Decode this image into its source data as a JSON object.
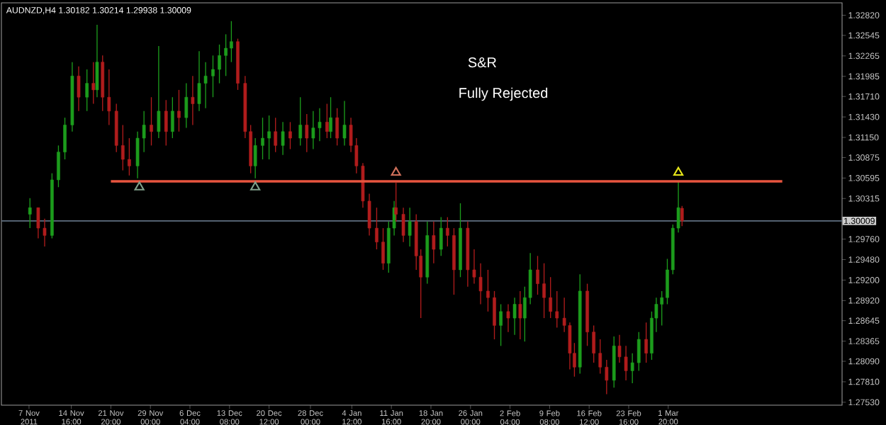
{
  "chart_data": {
    "type": "candlestick",
    "title": "S&R",
    "subtitle": "Fully Rejected",
    "annotations": [
      "AUDNZD,H4 1.30182 1.30214 1.29938 1.30009"
    ],
    "xlim": [
      "2011-11-02T00:00",
      "2012-04-02T08:00"
    ],
    "ylim": [
      1.2749,
      1.3299
    ],
    "xticks": [
      {
        "value": "2011-11-07T00:00",
        "label": "7 Nov 2011"
      },
      {
        "value": "2011-11-14T16:00",
        "label": "14 Nov 16:00"
      },
      {
        "value": "2011-11-21T20:00",
        "label": "21 Nov 20:00"
      },
      {
        "value": "2011-11-29T00:00",
        "label": "29 Nov 00:00"
      },
      {
        "value": "2011-12-06T04:00",
        "label": "6 Dec 04:00"
      },
      {
        "value": "2011-12-13T08:00",
        "label": "13 Dec 08:00"
      },
      {
        "value": "2011-12-20T12:00",
        "label": "20 Dec 12:00"
      },
      {
        "value": "2011-12-28T00:00",
        "label": "28 Dec 00:00"
      },
      {
        "value": "2012-01-04T12:00",
        "label": "4 Jan 12:00"
      },
      {
        "value": "2012-01-11T16:00",
        "label": "11 Jan 16:00"
      },
      {
        "value": "2012-01-18T20:00",
        "label": "18 Jan 20:00"
      },
      {
        "value": "2012-01-26T00:00",
        "label": "26 Jan 00:00"
      },
      {
        "value": "2012-02-02T04:00",
        "label": "2 Feb 04:00"
      },
      {
        "value": "2012-02-09T08:00",
        "label": "9 Feb 08:00"
      },
      {
        "value": "2012-02-16T12:00",
        "label": "16 Feb 12:00"
      },
      {
        "value": "2012-02-23T16:00",
        "label": "23 Feb 16:00"
      },
      {
        "value": "2012-03-01T20:00",
        "label": "1 Mar 20:00"
      }
    ],
    "yticks": [
      {
        "value": 1.2753,
        "label": "1.27530"
      },
      {
        "value": 1.2781,
        "label": "1.27810"
      },
      {
        "value": 1.2809,
        "label": "1.28090"
      },
      {
        "value": 1.28365,
        "label": "1.28365"
      },
      {
        "value": 1.28645,
        "label": "1.28645"
      },
      {
        "value": 1.2892,
        "label": "1.28920"
      },
      {
        "value": 1.292,
        "label": "1.29200"
      },
      {
        "value": 1.2948,
        "label": "1.29480"
      },
      {
        "value": 1.2976,
        "label": "1.29760"
      },
      {
        "value": 1.30315,
        "label": "1.30315"
      },
      {
        "value": 1.30595,
        "label": "1.30595"
      },
      {
        "value": 1.30875,
        "label": "1.30875"
      },
      {
        "value": 1.3115,
        "label": "1.31150"
      },
      {
        "value": 1.3143,
        "label": "1.31430"
      },
      {
        "value": 1.3171,
        "label": "1.31710"
      },
      {
        "value": 1.31985,
        "label": "1.31985"
      },
      {
        "value": 1.32265,
        "label": "1.32265"
      },
      {
        "value": 1.32545,
        "label": "1.32545"
      },
      {
        "value": 1.3282,
        "label": "1.32820"
      }
    ],
    "ref_lines": [
      {
        "axis": "y",
        "value": 1.30009,
        "label": "1.30009",
        "color": "#5f6f80"
      }
    ],
    "series": [
      {
        "x": [
          "2011-11-07T04:00",
          "2011-11-08T16:00",
          "2011-11-09T20:00",
          "2011-11-11T04:00",
          "2011-11-12T08:00",
          "2011-11-13T12:00",
          "2011-11-14T20:00",
          "2011-11-16T00:00",
          "2011-11-17T12:00",
          "2011-11-18T16:00",
          "2011-11-19T08:00",
          "2011-11-20T08:00",
          "2011-11-21T12:00",
          "2011-11-22T20:00",
          "2011-11-24T00:00",
          "2011-11-25T04:00",
          "2011-11-26T16:00",
          "2011-11-27T20:00",
          "2011-11-29T04:00",
          "2011-11-30T12:00",
          "2011-12-01T20:00",
          "2011-12-03T00:00",
          "2011-12-04T04:00",
          "2011-12-05T12:00",
          "2011-12-06T16:00",
          "2011-12-07T20:00",
          "2011-12-09T00:00",
          "2011-12-10T08:00",
          "2011-12-11T12:00",
          "2011-12-12T16:00",
          "2011-12-13T16:00",
          "2011-12-14T20:00",
          "2011-12-16T04:00",
          "2011-12-17T04:00",
          "2011-12-18T00:00",
          "2011-12-19T08:00",
          "2011-12-20T12:00",
          "2011-12-21T16:00",
          "2011-12-23T00:00",
          "2011-12-24T08:00",
          "2011-12-26T04:00",
          "2011-12-27T08:00",
          "2011-12-28T12:00",
          "2011-12-29T16:00",
          "2011-12-31T00:00",
          "2011-12-31T16:00",
          "2012-01-01T20:00",
          "2012-01-03T04:00",
          "2012-01-04T08:00",
          "2012-01-05T08:00",
          "2012-01-06T12:00",
          "2012-01-07T16:00",
          "2012-01-09T00:00",
          "2012-01-10T04:00",
          "2012-01-11T04:00",
          "2012-01-12T04:00",
          "2012-01-12T12:00",
          "2012-01-13T20:00",
          "2012-01-15T00:00",
          "2012-01-16T04:00",
          "2012-01-17T00:00",
          "2012-01-18T04:00",
          "2012-01-19T08:00",
          "2012-01-20T16:00",
          "2012-01-21T20:00",
          "2012-01-23T00:00",
          "2012-01-24T04:00",
          "2012-01-25T12:00",
          "2012-01-26T16:00",
          "2012-01-27T20:00",
          "2012-01-29T04:00",
          "2012-01-30T08:00",
          "2012-01-31T12:00",
          "2012-02-01T20:00",
          "2012-02-03T00:00",
          "2012-02-04T00:00",
          "2012-02-04T20:00",
          "2012-02-05T20:00",
          "2012-02-07T04:00",
          "2012-02-08T08:00",
          "2012-02-09T12:00",
          "2012-02-10T16:00",
          "2012-02-12T00:00",
          "2012-02-13T00:00",
          "2012-02-13T20:00",
          "2012-02-14T20:00",
          "2012-02-16T04:00",
          "2012-02-17T08:00",
          "2012-02-18T12:00",
          "2012-02-19T16:00",
          "2012-02-21T00:00",
          "2012-02-22T00:00",
          "2012-02-23T04:00",
          "2012-02-24T08:00",
          "2012-02-25T12:00",
          "2012-02-26T20:00",
          "2012-02-27T20:00",
          "2012-02-28T16:00",
          "2012-02-29T16:00",
          "2012-03-01T16:00",
          "2012-03-02T16:00",
          "2012-03-03T16:00",
          "2012-03-04T08:00"
        ],
        "ohlc": [
          [
            1.301,
            1.3032,
            1.2991,
            1.3019
          ],
          [
            1.3019,
            1.3019,
            1.2977,
            1.2991
          ],
          [
            1.2991,
            1.3004,
            1.2966,
            1.2981
          ],
          [
            1.2981,
            1.3066,
            1.2977,
            1.3057
          ],
          [
            1.3057,
            1.3104,
            1.3047,
            1.3095
          ],
          [
            1.3095,
            1.3142,
            1.3085,
            1.3132
          ],
          [
            1.3132,
            1.3218,
            1.3123,
            1.3199
          ],
          [
            1.3199,
            1.3212,
            1.3151,
            1.317
          ],
          [
            1.317,
            1.3208,
            1.3151,
            1.3189
          ],
          [
            1.3189,
            1.3218,
            1.3161,
            1.318
          ],
          [
            1.318,
            1.3269,
            1.317,
            1.3218
          ],
          [
            1.3218,
            1.3227,
            1.3151,
            1.317
          ],
          [
            1.317,
            1.3208,
            1.3132,
            1.3151
          ],
          [
            1.3151,
            1.3161,
            1.3095,
            1.3104
          ],
          [
            1.3104,
            1.3132,
            1.307,
            1.3085
          ],
          [
            1.3085,
            1.3114,
            1.3063,
            1.3076
          ],
          [
            1.3076,
            1.3123,
            1.3059,
            1.3114
          ],
          [
            1.3114,
            1.3151,
            1.3095,
            1.3132
          ],
          [
            1.3132,
            1.317,
            1.3104,
            1.3123
          ],
          [
            1.3123,
            1.324,
            1.3114,
            1.3151
          ],
          [
            1.3151,
            1.3166,
            1.3104,
            1.3123
          ],
          [
            1.3123,
            1.317,
            1.3114,
            1.3151
          ],
          [
            1.3151,
            1.318,
            1.3123,
            1.3142
          ],
          [
            1.3142,
            1.3189,
            1.3128,
            1.317
          ],
          [
            1.317,
            1.3199,
            1.3132,
            1.3161
          ],
          [
            1.3161,
            1.3233,
            1.3151,
            1.3189
          ],
          [
            1.3189,
            1.3218,
            1.3155,
            1.3199
          ],
          [
            1.3199,
            1.3227,
            1.317,
            1.3208
          ],
          [
            1.3208,
            1.3242,
            1.3189,
            1.3227
          ],
          [
            1.3227,
            1.3256,
            1.3199,
            1.3237
          ],
          [
            1.3237,
            1.3274,
            1.3218,
            1.3246
          ],
          [
            1.3246,
            1.325,
            1.318,
            1.3189
          ],
          [
            1.3189,
            1.3199,
            1.3114,
            1.3123
          ],
          [
            1.3123,
            1.3132,
            1.3066,
            1.3076
          ],
          [
            1.3076,
            1.3114,
            1.3059,
            1.3104
          ],
          [
            1.3104,
            1.3142,
            1.3085,
            1.3114
          ],
          [
            1.3114,
            1.3145,
            1.3085,
            1.3123
          ],
          [
            1.3123,
            1.3142,
            1.3095,
            1.3104
          ],
          [
            1.3104,
            1.3136,
            1.3091,
            1.3123
          ],
          [
            1.3123,
            1.3136,
            1.3099,
            1.3114
          ],
          [
            1.3114,
            1.317,
            1.3104,
            1.3132
          ],
          [
            1.3132,
            1.3147,
            1.3095,
            1.3114
          ],
          [
            1.3114,
            1.3151,
            1.3099,
            1.3128
          ],
          [
            1.3128,
            1.3155,
            1.311,
            1.3136
          ],
          [
            1.3136,
            1.3161,
            1.3114,
            1.3123
          ],
          [
            1.3123,
            1.317,
            1.3114,
            1.3142
          ],
          [
            1.3142,
            1.3155,
            1.3104,
            1.3114
          ],
          [
            1.3114,
            1.3165,
            1.3104,
            1.3132
          ],
          [
            1.3132,
            1.3142,
            1.3095,
            1.3104
          ],
          [
            1.3104,
            1.3114,
            1.3066,
            1.3076
          ],
          [
            1.3076,
            1.308,
            1.3019,
            1.3028
          ],
          [
            1.3028,
            1.3038,
            1.2981,
            1.2991
          ],
          [
            1.2991,
            1.3019,
            1.2962,
            1.2972
          ],
          [
            1.2972,
            1.2991,
            1.2934,
            1.2943
          ],
          [
            1.2943,
            1.3,
            1.293,
            1.2991
          ],
          [
            1.2991,
            1.3028,
            1.2981,
            1.3019
          ],
          [
            1.3019,
            1.3053,
            1.3,
            1.301
          ],
          [
            1.301,
            1.3019,
            1.2972,
            1.2981
          ],
          [
            1.2981,
            1.3019,
            1.2966,
            1.3
          ],
          [
            1.3,
            1.301,
            1.2934,
            1.2953
          ],
          [
            1.2953,
            1.2962,
            1.2868,
            1.2924
          ],
          [
            1.2924,
            1.3,
            1.2915,
            1.2981
          ],
          [
            1.2981,
            1.3,
            1.2943,
            1.2962
          ],
          [
            1.2962,
            1.3006,
            1.2953,
            1.2991
          ],
          [
            1.2991,
            1.3006,
            1.2966,
            1.2981
          ],
          [
            1.2981,
            1.2991,
            1.29,
            1.2934
          ],
          [
            1.2934,
            1.3025,
            1.2924,
            1.2991
          ],
          [
            1.2991,
            1.3,
            1.2911,
            1.2934
          ],
          [
            1.2934,
            1.2962,
            1.2915,
            1.2924
          ],
          [
            1.2924,
            1.2943,
            1.2887,
            1.2905
          ],
          [
            1.2905,
            1.2934,
            1.2877,
            1.2896
          ],
          [
            1.2896,
            1.2905,
            1.2839,
            1.2858
          ],
          [
            1.2858,
            1.2887,
            1.283,
            1.2877
          ],
          [
            1.2877,
            1.2887,
            1.2849,
            1.2868
          ],
          [
            1.2868,
            1.2896,
            1.2845,
            1.2887
          ],
          [
            1.2887,
            1.2905,
            1.2839,
            1.2868
          ],
          [
            1.2868,
            1.2911,
            1.2836,
            1.2896
          ],
          [
            1.2896,
            1.2957,
            1.2887,
            1.2934
          ],
          [
            1.2934,
            1.2953,
            1.29,
            1.2915
          ],
          [
            1.2915,
            1.2943,
            1.2868,
            1.2896
          ],
          [
            1.2896,
            1.2924,
            1.2868,
            1.2877
          ],
          [
            1.2877,
            1.2905,
            1.2855,
            1.2868
          ],
          [
            1.2868,
            1.2896,
            1.2849,
            1.2858
          ],
          [
            1.2858,
            1.2862,
            1.2798,
            1.282
          ],
          [
            1.282,
            1.2834,
            1.2788,
            1.2801
          ],
          [
            1.2801,
            1.2928,
            1.2792,
            1.2905
          ],
          [
            1.2905,
            1.2915,
            1.283,
            1.2849
          ],
          [
            1.2849,
            1.2858,
            1.2807,
            1.282
          ],
          [
            1.282,
            1.2839,
            1.2792,
            1.2801
          ],
          [
            1.2801,
            1.2811,
            1.2764,
            1.2783
          ],
          [
            1.2783,
            1.2843,
            1.2773,
            1.283
          ],
          [
            1.283,
            1.2845,
            1.2807,
            1.2815
          ],
          [
            1.2815,
            1.283,
            1.2783,
            1.2796
          ],
          [
            1.2796,
            1.282,
            1.2779,
            1.2807
          ],
          [
            1.2807,
            1.2849,
            1.2796,
            1.2839
          ],
          [
            1.2839,
            1.2862,
            1.2807,
            1.282
          ],
          [
            1.282,
            1.2877,
            1.2811,
            1.2868
          ],
          [
            1.2868,
            1.2896,
            1.2849,
            1.2887
          ],
          [
            1.2887,
            1.2905,
            1.2858,
            1.2896
          ],
          [
            1.2896,
            1.2949,
            1.2887,
            1.2934
          ],
          [
            1.2934,
            1.2996,
            1.2928,
            1.2991
          ],
          [
            1.2991,
            1.3055,
            1.2985,
            1.3019
          ],
          [
            1.30182,
            1.30214,
            1.29938,
            1.30009
          ]
        ],
        "colors": [
          "#1c9c1c",
          "#b01c1c",
          "#b01c1c",
          "#1c9c1c",
          "#1c9c1c",
          "#1c9c1c",
          "#1c9c1c",
          "#b01c1c",
          "#1c9c1c",
          "#b01c1c",
          "#1c9c1c",
          "#b01c1c",
          "#b01c1c",
          "#b01c1c",
          "#b01c1c",
          "#b01c1c",
          "#1c9c1c",
          "#1c9c1c",
          "#b01c1c",
          "#1c9c1c",
          "#b01c1c",
          "#1c9c1c",
          "#b01c1c",
          "#1c9c1c",
          "#b01c1c",
          "#1c9c1c",
          "#1c9c1c",
          "#1c9c1c",
          "#1c9c1c",
          "#1c9c1c",
          "#1c9c1c",
          "#b01c1c",
          "#b01c1c",
          "#b01c1c",
          "#1c9c1c",
          "#1c9c1c",
          "#1c9c1c",
          "#b01c1c",
          "#1c9c1c",
          "#b01c1c",
          "#1c9c1c",
          "#b01c1c",
          "#1c9c1c",
          "#1c9c1c",
          "#b01c1c",
          "#1c9c1c",
          "#b01c1c",
          "#1c9c1c",
          "#b01c1c",
          "#b01c1c",
          "#b01c1c",
          "#b01c1c",
          "#b01c1c",
          "#b01c1c",
          "#1c9c1c",
          "#1c9c1c",
          "#b01c1c",
          "#b01c1c",
          "#1c9c1c",
          "#b01c1c",
          "#b01c1c",
          "#1c9c1c",
          "#b01c1c",
          "#1c9c1c",
          "#b01c1c",
          "#b01c1c",
          "#1c9c1c",
          "#b01c1c",
          "#b01c1c",
          "#b01c1c",
          "#b01c1c",
          "#b01c1c",
          "#1c9c1c",
          "#b01c1c",
          "#1c9c1c",
          "#b01c1c",
          "#1c9c1c",
          "#1c9c1c",
          "#b01c1c",
          "#b01c1c",
          "#b01c1c",
          "#b01c1c",
          "#b01c1c",
          "#b01c1c",
          "#b01c1c",
          "#1c9c1c",
          "#b01c1c",
          "#b01c1c",
          "#b01c1c",
          "#b01c1c",
          "#1c9c1c",
          "#b01c1c",
          "#b01c1c",
          "#1c9c1c",
          "#1c9c1c",
          "#b01c1c",
          "#1c9c1c",
          "#1c9c1c",
          "#1c9c1c",
          "#1c9c1c",
          "#1c9c1c",
          "#1c9c1c",
          "#b01c1c"
        ]
      },
      {
        "type": "line",
        "x": [
          "2011-11-21T20:00",
          "2012-03-22T12:00"
        ],
        "values": [
          1.3055,
          1.3055
        ],
        "color": "#e8553f",
        "line_style": "solid"
      },
      {
        "type": "scatter",
        "x": [
          "2011-11-27T00:00",
          "2011-12-18T00:00",
          "2012-01-12T12:00",
          "2012-03-03T16:00"
        ],
        "values": [
          1.3047,
          1.3047,
          1.3067,
          1.3067
        ],
        "colors": [
          "#7fa08a",
          "#7fa08a",
          "#d0705a",
          "#e6e61a"
        ],
        "marker": "triangle"
      }
    ]
  }
}
